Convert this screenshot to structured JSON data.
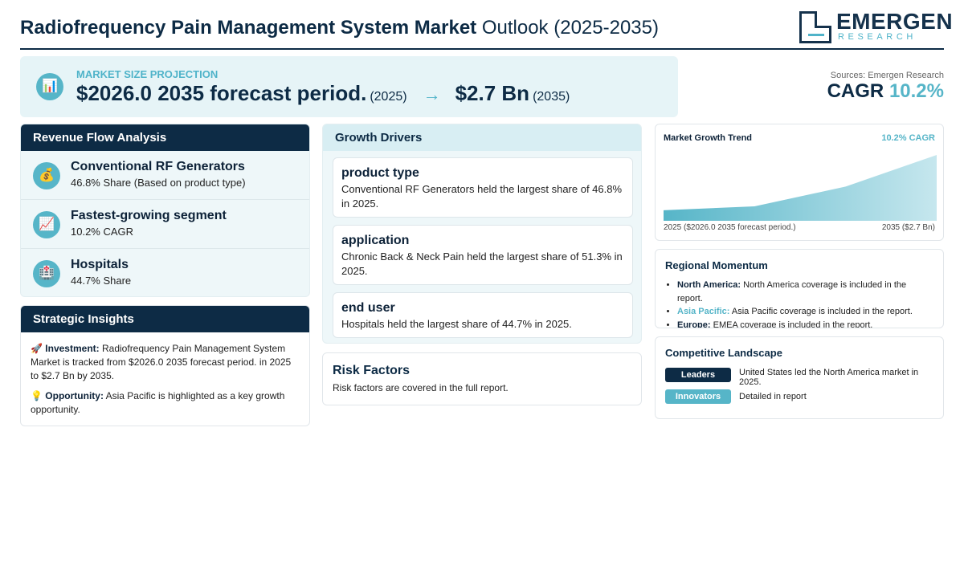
{
  "header": {
    "title_bold": "Radiofrequency Pain Management System Market",
    "title_light": "Outlook (2025-2035)"
  },
  "logo": {
    "name": "EMERGEN",
    "sub": "RESEARCH"
  },
  "projection": {
    "icon": "bar-chart-icon",
    "label": "MARKET SIZE PROJECTION",
    "start_value": "$2026.0 2035 forecast period.",
    "start_year": "(2025)",
    "arrow": "→",
    "end_value": "$2.7 Bn",
    "end_year": "(2035)"
  },
  "summary": {
    "source": "Sources: Emergen Research",
    "cagr_label": "CAGR",
    "cagr_value": "10.2%"
  },
  "revenue": {
    "title": "Revenue Flow Analysis",
    "items": [
      {
        "icon": "money-bag-icon",
        "title": "Conventional RF Generators",
        "sub": "46.8% Share (Based on product type)"
      },
      {
        "icon": "trending-up-icon",
        "title": "Fastest-growing segment",
        "sub": "10.2% CAGR"
      },
      {
        "icon": "hospital-icon",
        "title": "Hospitals",
        "sub": "44.7% Share"
      }
    ]
  },
  "strategic": {
    "title": "Strategic Insights",
    "investment_label": "Investment:",
    "investment_text": "Radiofrequency Pain Management System Market is tracked from $2026.0 2035 forecast period. in 2025 to $2.7 Bn by 2035.",
    "opportunity_label": "Opportunity:",
    "opportunity_text": "Asia Pacific is highlighted as a key growth opportunity."
  },
  "drivers": {
    "title": "Growth Drivers",
    "items": [
      {
        "title": "product type",
        "text": "Conventional RF Generators held the largest share of 46.8% in 2025."
      },
      {
        "title": "application",
        "text": "Chronic Back & Neck Pain held the largest share of 51.3% in 2025."
      },
      {
        "title": "end user",
        "text": "Hospitals held the largest share of 44.7% in 2025."
      }
    ]
  },
  "risk": {
    "title": "Risk Factors",
    "text": "Risk factors are covered in the full report."
  },
  "trend": {
    "title": "Market Growth Trend",
    "cagr": "10.2% CAGR",
    "start_label": "2025 ($2026.0 2035 forecast period.)",
    "end_label": "2035 ($2.7 Bn)",
    "curve": [
      0.16,
      0.22,
      0.52,
      1.0
    ]
  },
  "regional": {
    "title": "Regional Momentum",
    "items": [
      {
        "name": "North America:",
        "text": "North America coverage is included in the report."
      },
      {
        "name": "Asia Pacific:",
        "text": "Asia Pacific coverage is included in the report."
      },
      {
        "name": "Europe:",
        "text": "EMEA coverage is included in the report."
      }
    ]
  },
  "competitive": {
    "title": "Competitive Landscape",
    "leaders_label": "Leaders",
    "leaders_text": "United States led the North America market in 2025.",
    "innovators_label": "Innovators",
    "innovators_text": "Detailed in report"
  },
  "colors": {
    "navy": "#0d2b45",
    "accent": "#56b5c8",
    "tint": "#e6f4f7"
  }
}
